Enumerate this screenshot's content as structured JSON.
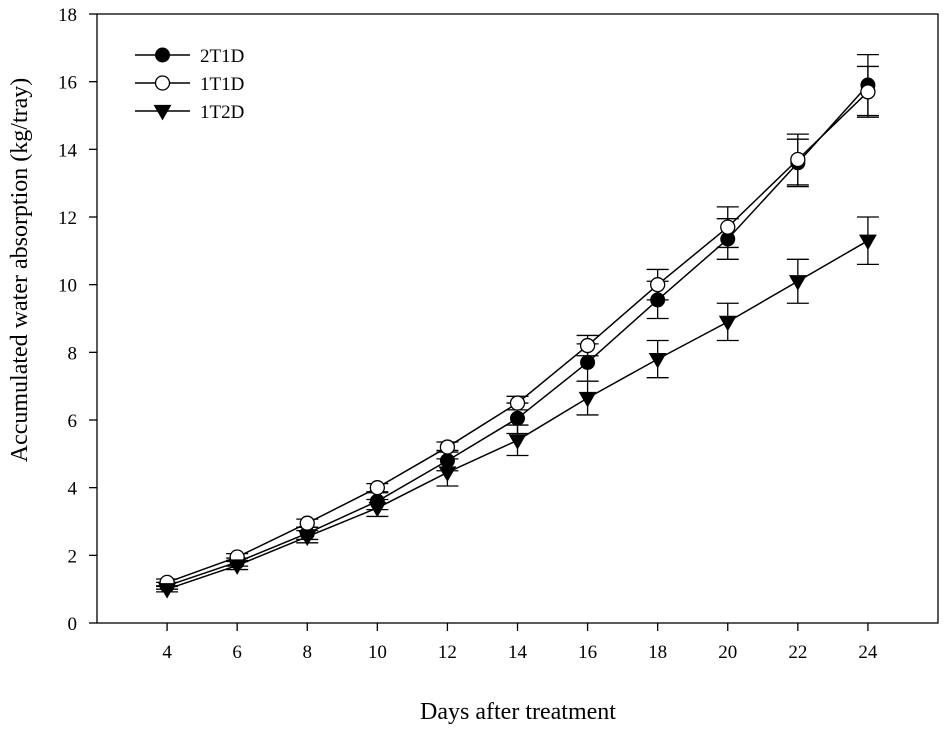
{
  "chart_data": {
    "type": "line",
    "xlabel": "Days after treatment",
    "ylabel": "Accumulated water absorption (kg/tray)",
    "xlim": [
      2,
      26
    ],
    "ylim": [
      0,
      18
    ],
    "x_ticks": [
      4,
      6,
      8,
      10,
      12,
      14,
      16,
      18,
      20,
      22,
      24
    ],
    "y_ticks": [
      0,
      2,
      4,
      6,
      8,
      10,
      12,
      14,
      16,
      18
    ],
    "grid": false,
    "legend_position": "top-left",
    "x": [
      4,
      6,
      8,
      10,
      12,
      14,
      16,
      18,
      20,
      22,
      24
    ],
    "series": [
      {
        "name": "2T1D",
        "marker": "filled-circle",
        "values": [
          1.1,
          1.8,
          2.65,
          3.6,
          4.8,
          6.05,
          7.7,
          9.55,
          11.35,
          13.6,
          15.9
        ],
        "errors": [
          0.1,
          0.12,
          0.18,
          0.25,
          0.3,
          0.45,
          0.55,
          0.55,
          0.6,
          0.7,
          0.9
        ]
      },
      {
        "name": "1T1D",
        "marker": "open-circle",
        "values": [
          1.2,
          1.95,
          2.95,
          4.0,
          5.2,
          6.5,
          8.2,
          10.0,
          11.7,
          13.7,
          15.7
        ],
        "errors": [
          0.1,
          0.1,
          0.12,
          0.12,
          0.15,
          0.2,
          0.3,
          0.45,
          0.6,
          0.75,
          0.75
        ]
      },
      {
        "name": "1T2D",
        "marker": "filled-triangle-down",
        "values": [
          1.0,
          1.7,
          2.55,
          3.4,
          4.45,
          5.4,
          6.65,
          7.8,
          8.9,
          10.1,
          11.3
        ],
        "errors": [
          0.08,
          0.12,
          0.18,
          0.25,
          0.4,
          0.45,
          0.5,
          0.55,
          0.55,
          0.65,
          0.7
        ]
      }
    ]
  }
}
